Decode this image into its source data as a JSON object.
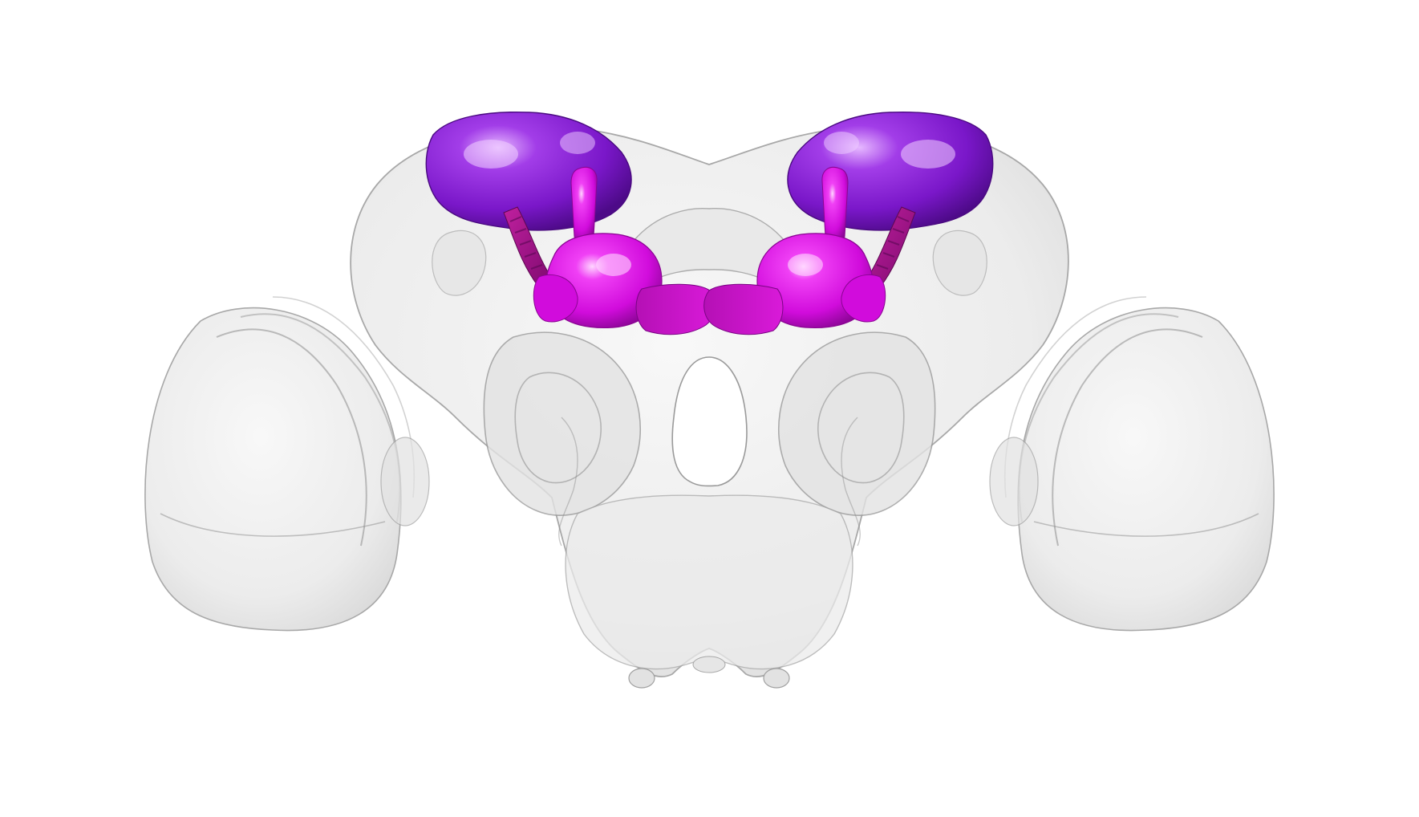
{
  "scene": {
    "background_color": "#ffffff",
    "neuropil_color": "#d9d9d9",
    "neuropil_edge_color": "#9a9a9a",
    "highlight_colors": {
      "calyx": "#8a1fd6",
      "calyx_dark": "#5e0fa0",
      "lobe": "#e010e8",
      "lobe_dark": "#a008b0",
      "peduncle": "#b0159a"
    },
    "structures": [
      {
        "name": "central-brain-mesh",
        "highlighted": false
      },
      {
        "name": "left-optic-lobe-mesh",
        "highlighted": false
      },
      {
        "name": "right-optic-lobe-mesh",
        "highlighted": false
      },
      {
        "name": "left-mushroom-body",
        "highlighted": true
      },
      {
        "name": "right-mushroom-body",
        "highlighted": true
      }
    ]
  }
}
